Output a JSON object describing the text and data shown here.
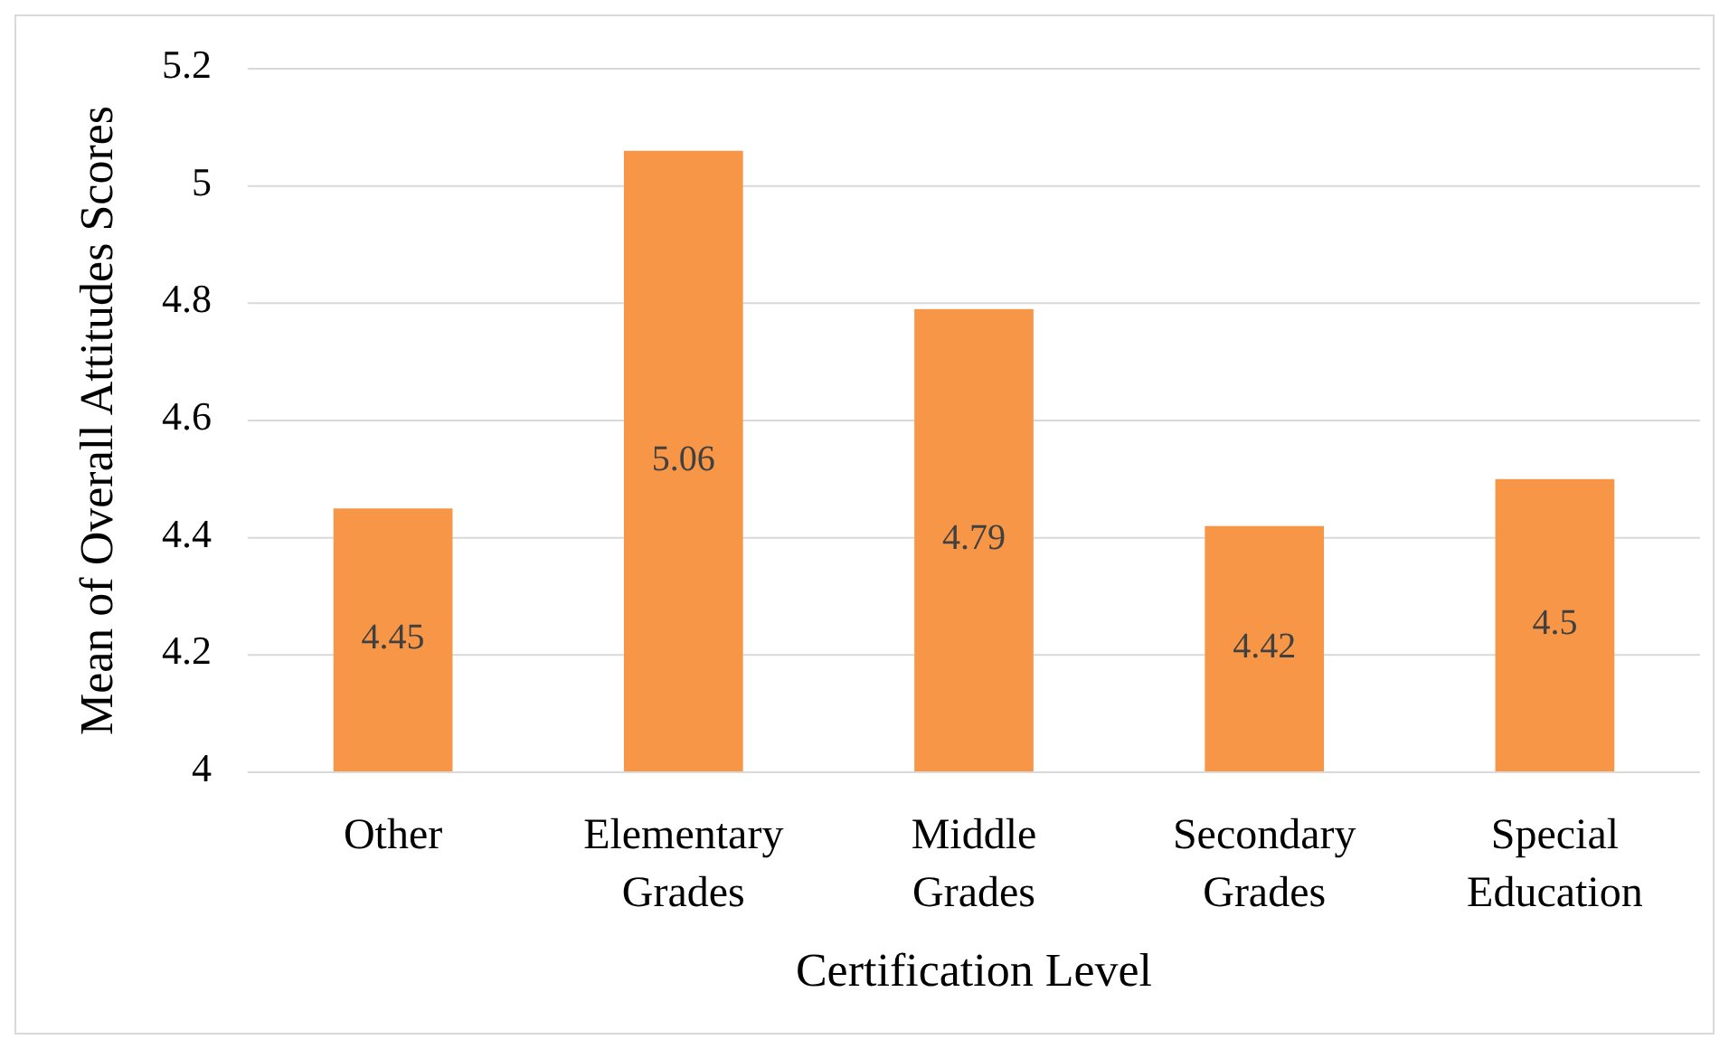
{
  "chart_data": {
    "type": "bar",
    "xlabel": "Certification Level",
    "ylabel": "Mean of Overall Attitudes Scores",
    "categories": [
      "Other",
      "Elementary Grades",
      "Middle Grades",
      "Secondary Grades",
      "Special Education"
    ],
    "values": [
      4.45,
      5.06,
      4.79,
      4.42,
      4.5
    ],
    "color": "#f79646",
    "ylim": [
      4,
      5.2
    ],
    "yticks": [
      4,
      4.2,
      4.4,
      4.6,
      4.8,
      5,
      5.2
    ],
    "grid": "y",
    "data_labels": true
  }
}
